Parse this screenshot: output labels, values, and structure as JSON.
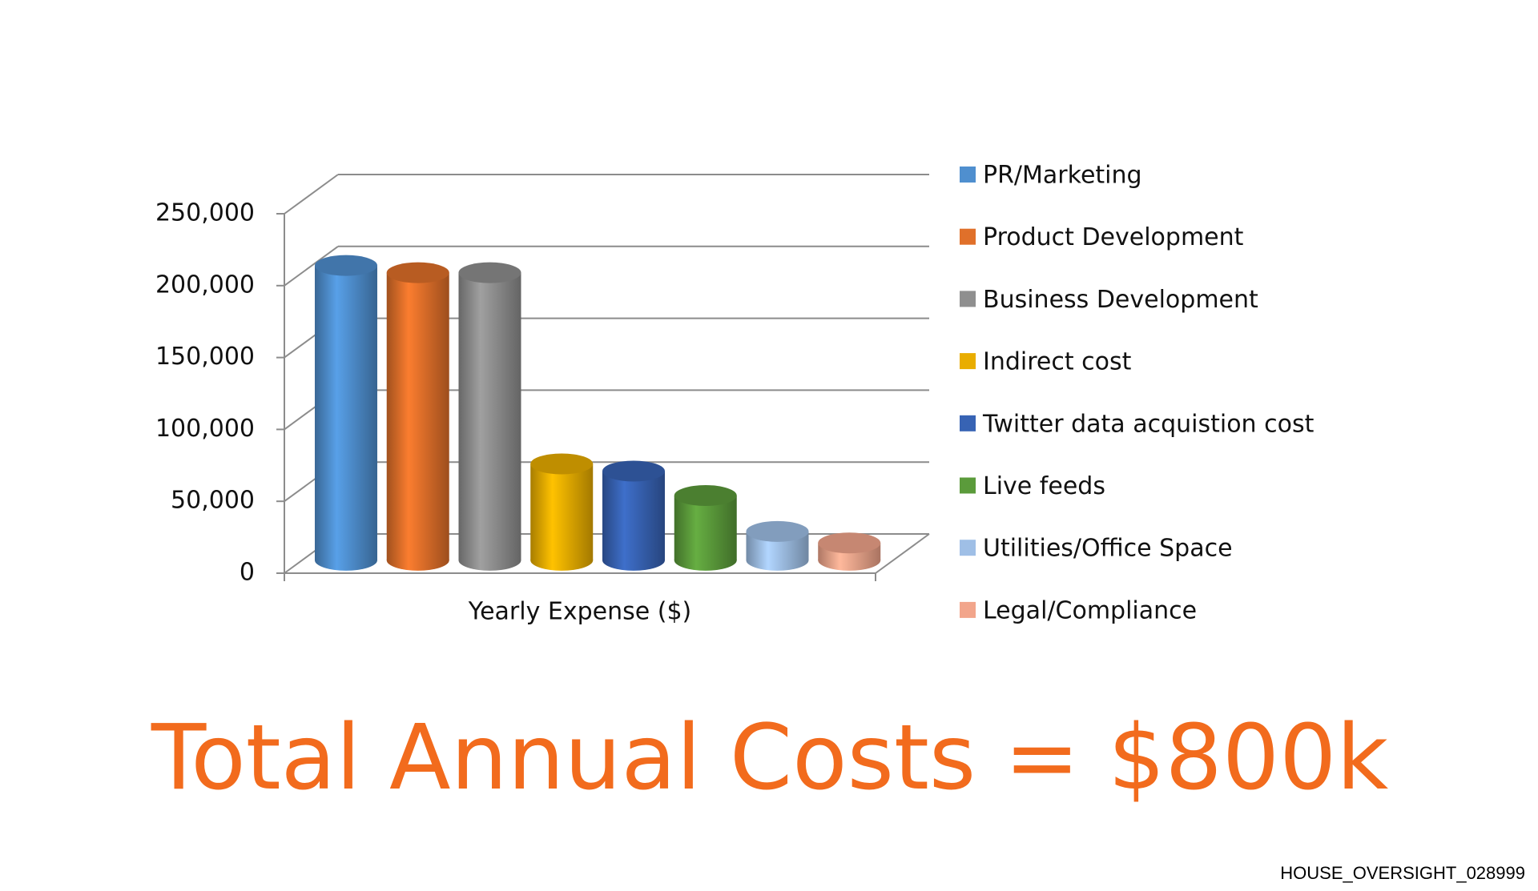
{
  "chart_data": {
    "type": "bar3d",
    "categories": [
      "Yearly Expense ($)"
    ],
    "series": [
      {
        "name": "PR/Marketing",
        "color": "#4f8fcf",
        "values": [
          205000
        ]
      },
      {
        "name": "Product Development",
        "color": "#e0702a",
        "values": [
          200000
        ]
      },
      {
        "name": "Business Development",
        "color": "#8f8f8f",
        "values": [
          200000
        ]
      },
      {
        "name": "Indirect cost",
        "color": "#e9ad00",
        "values": [
          67000
        ]
      },
      {
        "name": "Twitter data acquistion cost",
        "color": "#3763b4",
        "values": [
          62000
        ]
      },
      {
        "name": "Live feeds",
        "color": "#5b9b3b",
        "values": [
          45000
        ]
      },
      {
        "name": "Utilities/Office Space",
        "color": "#9fbfe6",
        "values": [
          20000
        ]
      },
      {
        "name": "Legal/Compliance",
        "color": "#f2a58b",
        "values": [
          12000
        ]
      }
    ],
    "ylim": [
      0,
      250000
    ],
    "yticks": [
      0,
      {
        "value": 50000,
        "label": "50,000"
      },
      {
        "value": 100000,
        "label": "100,000"
      },
      {
        "value": 150000,
        "label": "150,000"
      },
      {
        "value": 200000,
        "label": "200,000"
      },
      {
        "value": 250000,
        "label": "250,000"
      }
    ],
    "grid": true,
    "legend": "right"
  },
  "headline": "Total Annual Costs = $800k",
  "footer": "HOUSE_OVERSIGHT_028999"
}
